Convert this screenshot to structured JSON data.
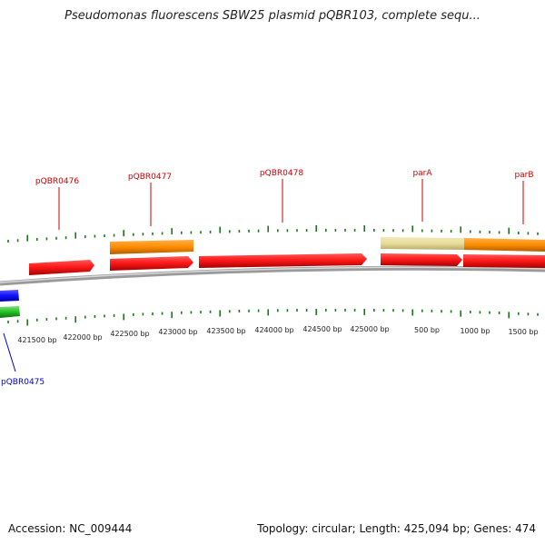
{
  "title": "Pseudomonas fluorescens SBW25 plasmid pQBR103, complete sequ...",
  "footer": {
    "accession": "Accession: NC_009444",
    "summary": "Topology: circular; Length: 425,094 bp; Genes: 474"
  },
  "colors": {
    "gene_red": "#ff1a1a",
    "gene_orange": "#ff8c00",
    "gene_khaki": "#e8dc9a",
    "gene_blue": "#1010ff",
    "gene_green": "#22c022",
    "tick_green": "#1a7a1a",
    "backbone": "#7a7a7a",
    "label_red": "#cc0000",
    "label_blue": "#0000cc"
  },
  "scale_labels": [
    "421500 bp",
    "422000 bp",
    "422500 bp",
    "423000 bp",
    "423500 bp",
    "424000 bp",
    "424500 bp",
    "425000 bp",
    "500 bp",
    "1000 bp",
    "1500 bp"
  ],
  "gene_labels": [
    {
      "name": "pQBR0476",
      "color": "red"
    },
    {
      "name": "pQBR0477",
      "color": "red"
    },
    {
      "name": "pQBR0478",
      "color": "red"
    },
    {
      "name": "parA",
      "color": "red"
    },
    {
      "name": "parB",
      "color": "red"
    },
    {
      "name": "pQBR0475",
      "color": "blue"
    }
  ]
}
